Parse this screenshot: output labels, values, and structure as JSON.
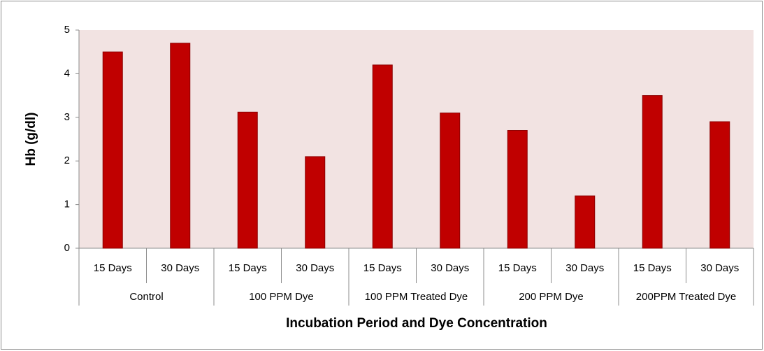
{
  "chart_data": {
    "type": "bar",
    "y_axis_label": "Hb (g/dl)",
    "x_axis_label": "Incubation Period and Dye Concentration",
    "categories": [
      "15 Days",
      "30 Days",
      "15 Days",
      "30 Days",
      "15 Days",
      "30 Days",
      "15 Days",
      "30 Days",
      "15 Days",
      "30 Days"
    ],
    "groups": [
      "Control",
      "100 PPM Dye",
      "100 PPM Treated Dye",
      "200 PPM Dye",
      "200PPM Treated Dye"
    ],
    "values": [
      4.5,
      4.7,
      3.12,
      2.1,
      4.2,
      3.1,
      2.7,
      1.2,
      3.5,
      2.9
    ],
    "color": "#c00000",
    "ylim": [
      0,
      5
    ],
    "yticks": [
      0,
      1,
      2,
      3,
      4,
      5
    ],
    "grid": false
  }
}
